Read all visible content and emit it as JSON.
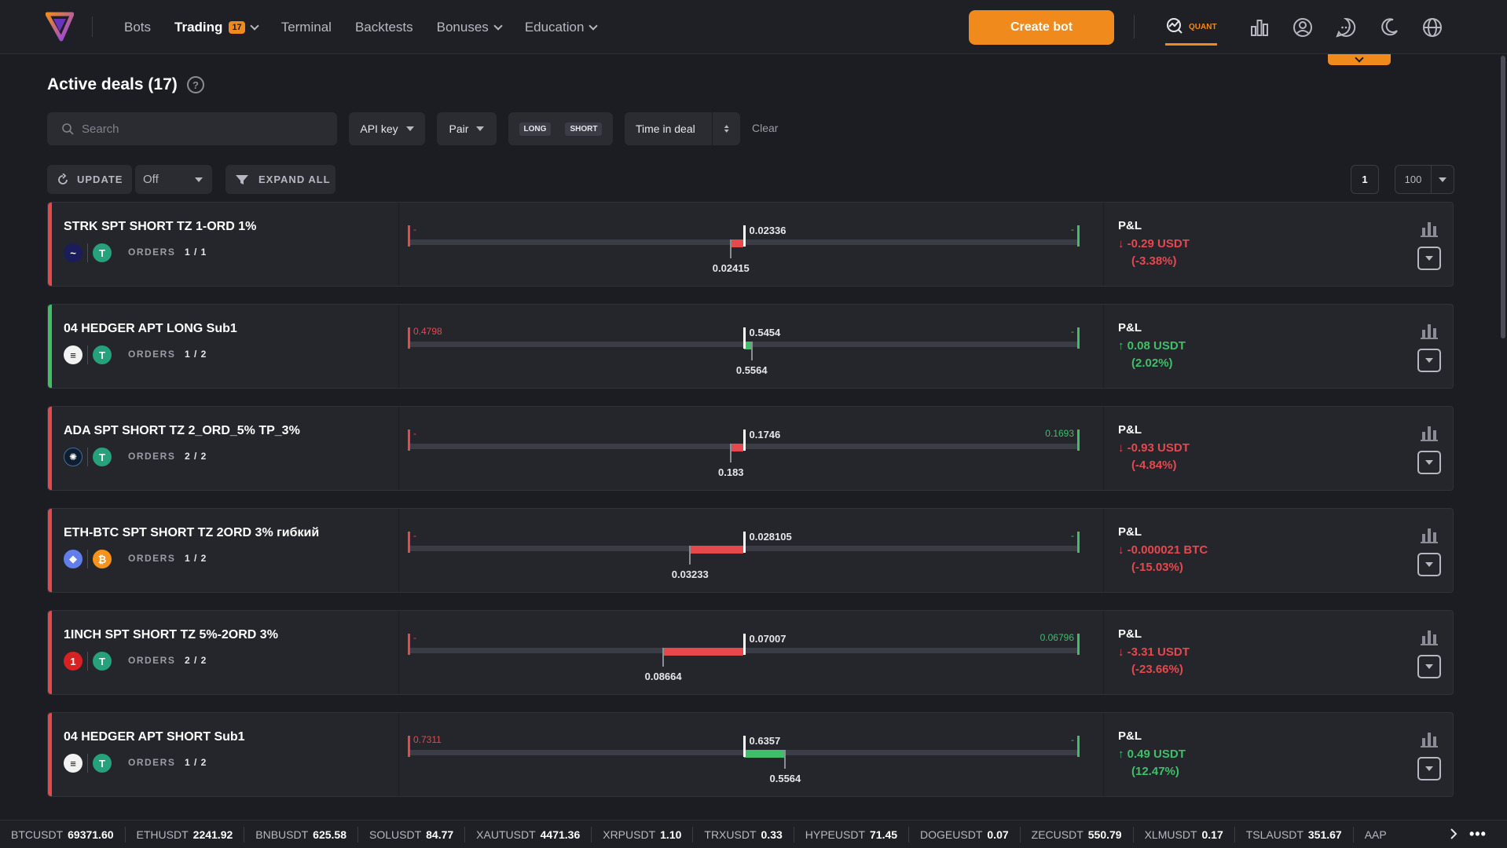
{
  "nav": {
    "items": [
      {
        "label": "Bots",
        "active": false,
        "chevron": false
      },
      {
        "label": "Trading",
        "active": true,
        "badge": "17",
        "chevron": true
      },
      {
        "label": "Terminal",
        "active": false,
        "chevron": false
      },
      {
        "label": "Backtests",
        "active": false,
        "chevron": false
      },
      {
        "label": "Bonuses",
        "active": false,
        "chevron": true
      },
      {
        "label": "Education",
        "active": false,
        "chevron": true
      }
    ],
    "create_bot": "Create bot",
    "quant_label": "QUANT"
  },
  "page": {
    "title": "Active deals (17)",
    "help": "?"
  },
  "filters": {
    "search_placeholder": "Search",
    "api_key": "API key",
    "pair": "Pair",
    "long": "LONG",
    "short": "SHORT",
    "time_in_deal": "Time in deal",
    "clear": "Clear"
  },
  "controls": {
    "update": "UPDATE",
    "update_interval": "Off",
    "expand_all": "EXPAND ALL",
    "page": "1",
    "per_page": "100"
  },
  "colors": {
    "accent": "#f08a1c",
    "loss": "#e5484d",
    "profit": "#3fbf6a"
  },
  "deals": [
    {
      "name": "STRK SPT SHORT TZ 1-ORD 1%",
      "side": "short",
      "coins": [
        "strk-icon",
        "usdt-icon"
      ],
      "orders_label": "ORDERS",
      "orders": "1 / 1",
      "left_label": "-",
      "left_color": "loss",
      "right_label": "-",
      "right_color": "profit",
      "current": "0.02336",
      "current_pos": 0.5,
      "avg": "0.02415",
      "avg_pos": 0.481,
      "fill": "loss",
      "pnl_label": "P&L",
      "pnl": "-0.29 USDT",
      "pnl_pct": "(-3.38%)",
      "pnl_dir": "down"
    },
    {
      "name": "04 HEDGER APT LONG Sub1",
      "side": "long",
      "coins": [
        "usde-icon",
        "usdt-icon"
      ],
      "orders_label": "ORDERS",
      "orders": "1 / 2",
      "left_label": "0.4798",
      "left_color": "loss",
      "right_label": "-",
      "right_color": "profit",
      "current": "0.5454",
      "current_pos": 0.5,
      "avg": "0.5564",
      "avg_pos": 0.512,
      "fill": "profit",
      "pnl_label": "P&L",
      "pnl": "0.08 USDT",
      "pnl_pct": "(2.02%)",
      "pnl_dir": "up"
    },
    {
      "name": "ADA SPT SHORT TZ 2_ORD_5% TP_3%",
      "side": "short",
      "coins": [
        "ada-icon",
        "usdt-icon"
      ],
      "orders_label": "ORDERS",
      "orders": "2 / 2",
      "left_label": "-",
      "left_color": "loss",
      "right_label": "0.1693",
      "right_color": "profit",
      "current": "0.1746",
      "current_pos": 0.5,
      "avg": "0.183",
      "avg_pos": 0.481,
      "fill": "loss",
      "pnl_label": "P&L",
      "pnl": "-0.93 USDT",
      "pnl_pct": "(-4.84%)",
      "pnl_dir": "down"
    },
    {
      "name": "ETH-BTC SPT SHORT TZ 2ORD 3% гибкий",
      "side": "short",
      "coins": [
        "eth-icon",
        "btc-icon"
      ],
      "orders_label": "ORDERS",
      "orders": "1 / 2",
      "left_label": "-",
      "left_color": "loss",
      "right_label": "-",
      "right_color": "profit",
      "current": "0.028105",
      "current_pos": 0.5,
      "avg": "0.03233",
      "avg_pos": 0.42,
      "fill": "loss",
      "pnl_label": "P&L",
      "pnl": "-0.000021 BTC",
      "pnl_pct": "(-15.03%)",
      "pnl_dir": "down"
    },
    {
      "name": "1INCH SPT SHORT TZ 5%-2ORD 3%",
      "side": "short",
      "coins": [
        "1inch-icon",
        "usdt-icon"
      ],
      "orders_label": "ORDERS",
      "orders": "2 / 2",
      "left_label": "-",
      "left_color": "loss",
      "right_label": "0.06796",
      "right_color": "profit",
      "current": "0.07007",
      "current_pos": 0.5,
      "avg": "0.08664",
      "avg_pos": 0.38,
      "fill": "loss",
      "pnl_label": "P&L",
      "pnl": "-3.31 USDT",
      "pnl_pct": "(-23.66%)",
      "pnl_dir": "down"
    },
    {
      "name": "04 HEDGER APT SHORT Sub1",
      "side": "short",
      "coins": [
        "usde-icon",
        "usdt-icon"
      ],
      "orders_label": "ORDERS",
      "orders": "1 / 2",
      "left_label": "0.7311",
      "left_color": "loss",
      "right_label": "-",
      "right_color": "profit",
      "current": "0.6357",
      "current_pos": 0.5,
      "avg": "0.5564",
      "avg_pos": 0.562,
      "fill": "profit",
      "pnl_label": "P&L",
      "pnl": "0.49 USDT",
      "pnl_pct": "(12.47%)",
      "pnl_dir": "up"
    }
  ],
  "ticker": [
    {
      "sym": "BTCUSDT",
      "price": "69371.60"
    },
    {
      "sym": "ETHUSDT",
      "price": "2241.92"
    },
    {
      "sym": "BNBUSDT",
      "price": "625.58"
    },
    {
      "sym": "SOLUSDT",
      "price": "84.77"
    },
    {
      "sym": "XAUTUSDT",
      "price": "4471.36"
    },
    {
      "sym": "XRPUSDT",
      "price": "1.10"
    },
    {
      "sym": "TRXUSDT",
      "price": "0.33"
    },
    {
      "sym": "HYPEUSDT",
      "price": "71.45"
    },
    {
      "sym": "DOGEUSDT",
      "price": "0.07"
    },
    {
      "sym": "ZECUSDT",
      "price": "550.79"
    },
    {
      "sym": "XLMUSDT",
      "price": "0.17"
    },
    {
      "sym": "TSLAUSDT",
      "price": "351.67"
    },
    {
      "sym": "AAP",
      "price": ""
    }
  ],
  "ticker_more": "•••"
}
